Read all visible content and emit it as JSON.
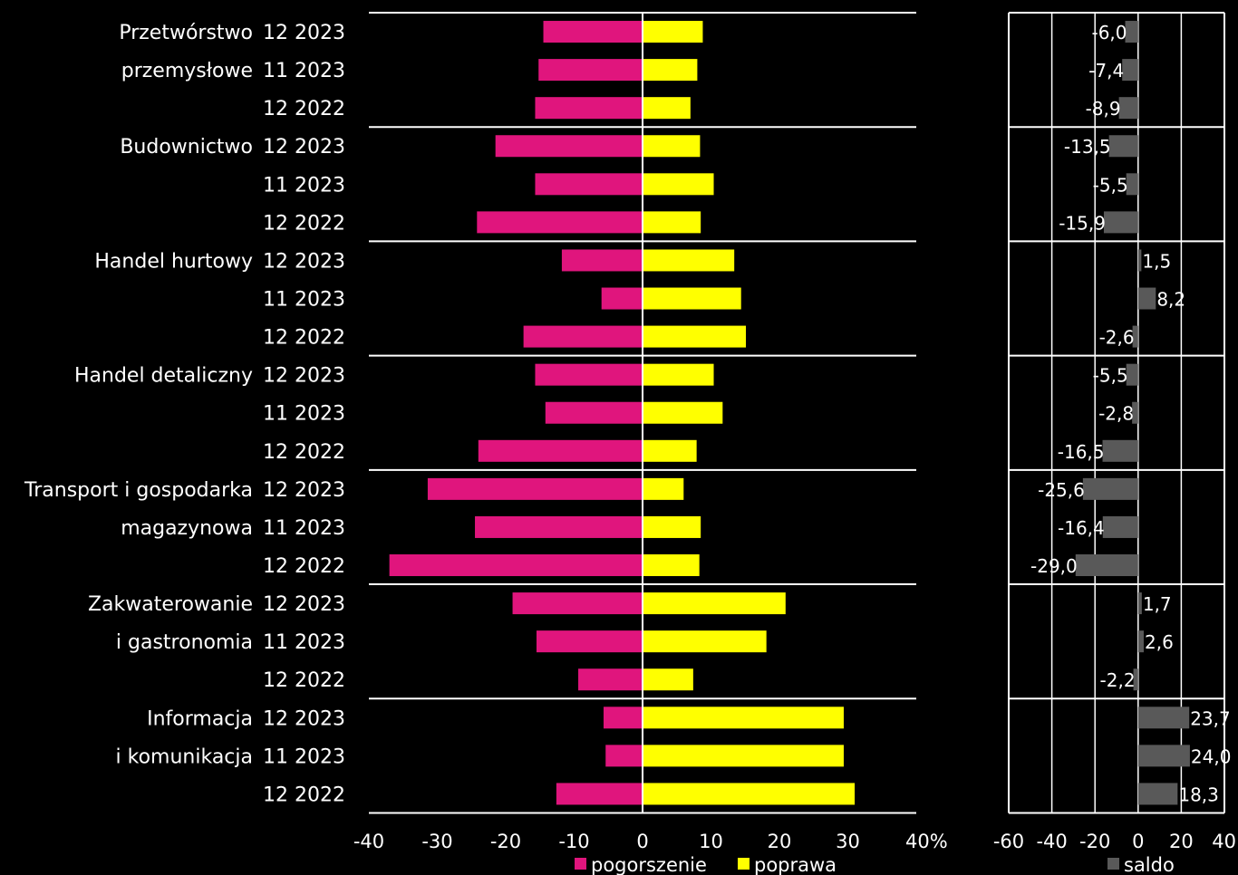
{
  "chart_data": [
    {
      "type": "bar",
      "orientation": "horizontal",
      "x_unit": "%",
      "xlim": [
        -40,
        40
      ],
      "xticks": [
        "-40",
        "-30",
        "-20",
        "-10",
        "0",
        "10",
        "20",
        "30",
        "40%"
      ],
      "legend_position": "bottom",
      "colors": {
        "pogorszenie": "#e0157d",
        "poprawa": "#ffff00"
      },
      "groups": [
        {
          "name_lines": [
            "Przetwórstwo",
            "przemysłowe"
          ],
          "rows": [
            {
              "period": "12 2023",
              "pogorszenie": -14.5,
              "poprawa": 8.8
            },
            {
              "period": "11 2023",
              "pogorszenie": -15.2,
              "poprawa": 8.0
            },
            {
              "period": "12 2022",
              "pogorszenie": -15.7,
              "poprawa": 7.0
            }
          ]
        },
        {
          "name_lines": [
            "Budownictwo"
          ],
          "rows": [
            {
              "period": "12 2023",
              "pogorszenie": -21.5,
              "poprawa": 8.4
            },
            {
              "period": "11 2023",
              "pogorszenie": -15.7,
              "poprawa": 10.4
            },
            {
              "period": "12 2022",
              "pogorszenie": -24.2,
              "poprawa": 8.5
            }
          ]
        },
        {
          "name_lines": [
            "Handel hurtowy"
          ],
          "rows": [
            {
              "period": "12 2023",
              "pogorszenie": -11.8,
              "poprawa": 13.4
            },
            {
              "period": "11 2023",
              "pogorszenie": -6.0,
              "poprawa": 14.4
            },
            {
              "period": "12 2022",
              "pogorszenie": -17.4,
              "poprawa": 15.1
            }
          ]
        },
        {
          "name_lines": [
            "Handel detaliczny"
          ],
          "rows": [
            {
              "period": "12 2023",
              "pogorszenie": -15.7,
              "poprawa": 10.4
            },
            {
              "period": "11 2023",
              "pogorszenie": -14.2,
              "poprawa": 11.7
            },
            {
              "period": "12 2022",
              "pogorszenie": -24.0,
              "poprawa": 7.9
            }
          ]
        },
        {
          "name_lines": [
            "Transport i gospodarka",
            "magazynowa"
          ],
          "rows": [
            {
              "period": "12 2023",
              "pogorszenie": -31.4,
              "poprawa": 6.0
            },
            {
              "period": "11 2023",
              "pogorszenie": -24.5,
              "poprawa": 8.5
            },
            {
              "period": "12 2022",
              "pogorszenie": -37.0,
              "poprawa": 8.3
            }
          ]
        },
        {
          "name_lines": [
            "Zakwaterowanie",
            "i gastronomia"
          ],
          "rows": [
            {
              "period": "12 2023",
              "pogorszenie": -19.0,
              "poprawa": 20.9
            },
            {
              "period": "11 2023",
              "pogorszenie": -15.5,
              "poprawa": 18.1
            },
            {
              "period": "12 2022",
              "pogorszenie": -9.4,
              "poprawa": 7.4
            }
          ]
        },
        {
          "name_lines": [
            "Informacja",
            "i komunikacja"
          ],
          "rows": [
            {
              "period": "12 2023",
              "pogorszenie": -5.7,
              "poprawa": 29.4
            },
            {
              "period": "11 2023",
              "pogorszenie": -5.4,
              "poprawa": 29.4
            },
            {
              "period": "12 2022",
              "pogorszenie": -12.6,
              "poprawa": 31.0
            }
          ]
        }
      ],
      "legend": [
        {
          "key": "pogorszenie",
          "label": "pogorszenie"
        },
        {
          "key": "poprawa",
          "label": "poprawa"
        }
      ]
    },
    {
      "type": "bar",
      "orientation": "horizontal",
      "xlim": [
        -60,
        40
      ],
      "xticks": [
        "-60",
        "-40",
        "-20",
        "0",
        "20",
        "40"
      ],
      "grid": true,
      "legend_position": "bottom",
      "color": "#595959",
      "series_name": "saldo",
      "values": [
        -6.0,
        -7.4,
        -8.9,
        -13.5,
        -5.5,
        -15.9,
        1.5,
        8.2,
        -2.6,
        -5.5,
        -2.8,
        -16.5,
        -25.6,
        -16.4,
        -29.0,
        1.7,
        2.6,
        -2.2,
        23.7,
        24.0,
        18.3
      ],
      "value_labels": [
        "-6,0",
        "-7,4",
        "-8,9",
        "-13,5",
        "-5,5",
        "-15,9",
        "1,5",
        "8,2",
        "-2,6",
        "-5,5",
        "-2,8",
        "-16,5",
        "-25,6",
        "-16,4",
        "-29,0",
        "1,7",
        "2,6",
        "-2,2",
        "23,7",
        "24,0",
        "18,3"
      ],
      "legend": [
        {
          "key": "saldo",
          "label": "saldo"
        }
      ]
    }
  ]
}
